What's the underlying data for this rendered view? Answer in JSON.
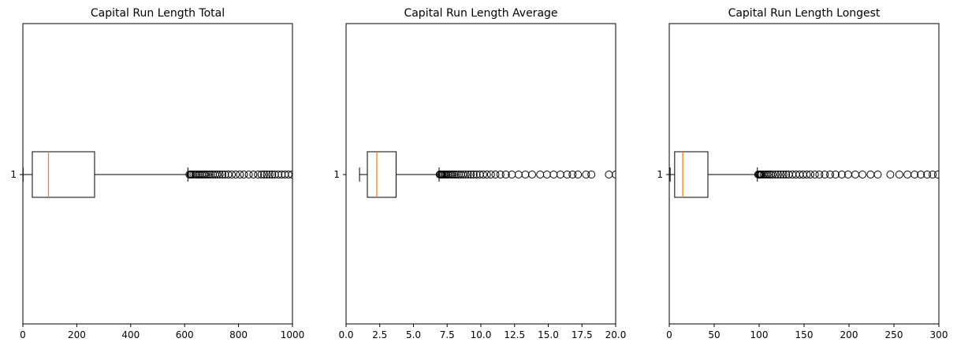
{
  "chart_data": [
    {
      "type": "boxplot",
      "orientation": "horizontal",
      "title": "Capital Run Length Total",
      "xlim": [
        0,
        1000
      ],
      "xticks": [
        0,
        200,
        400,
        600,
        800,
        1000
      ],
      "xtick_labels": [
        "0",
        "200",
        "400",
        "600",
        "800",
        "1000"
      ],
      "yticks": [
        "1"
      ],
      "box": {
        "whisker_low": 1,
        "q1": 35,
        "median": 95,
        "q3": 266,
        "whisker_high": 612
      },
      "outliers": [
        618,
        622,
        627,
        633,
        640,
        645,
        652,
        658,
        664,
        670,
        676,
        683,
        690,
        697,
        705,
        713,
        721,
        730,
        740,
        750,
        762,
        775,
        790,
        805,
        820,
        838,
        855,
        872,
        885,
        895,
        905,
        915,
        925,
        935,
        948,
        960,
        972,
        985,
        998
      ]
    },
    {
      "type": "boxplot",
      "orientation": "horizontal",
      "title": "Capital Run Length Average",
      "xlim": [
        0.0,
        20.0
      ],
      "xticks": [
        0.0,
        2.5,
        5.0,
        7.5,
        10.0,
        12.5,
        15.0,
        17.5,
        20.0
      ],
      "xtick_labels": [
        "0.0",
        "2.5",
        "5.0",
        "7.5",
        "10.0",
        "12.5",
        "15.0",
        "17.5",
        "20.0"
      ],
      "yticks": [
        "1"
      ],
      "box": {
        "whisker_low": 1.0,
        "q1": 1.58,
        "median": 2.28,
        "q3": 3.71,
        "whisker_high": 6.9
      },
      "outliers": [
        6.95,
        7.02,
        7.1,
        7.18,
        7.27,
        7.36,
        7.46,
        7.56,
        7.67,
        7.8,
        7.93,
        8.07,
        8.21,
        8.36,
        8.52,
        8.69,
        8.86,
        9.05,
        9.25,
        9.46,
        9.68,
        9.92,
        10.17,
        10.45,
        10.75,
        11.08,
        11.45,
        11.85,
        12.3,
        12.8,
        13.3,
        13.8,
        14.4,
        14.9,
        15.4,
        15.9,
        16.4,
        16.8,
        17.2,
        17.8,
        18.2,
        19.5,
        20.0
      ]
    },
    {
      "type": "boxplot",
      "orientation": "horizontal",
      "title": "Capital Run Length Longest",
      "xlim": [
        0,
        300
      ],
      "xticks": [
        0,
        50,
        100,
        150,
        200,
        250,
        300
      ],
      "xtick_labels": [
        "0",
        "50",
        "100",
        "150",
        "200",
        "250",
        "300"
      ],
      "yticks": [
        "1"
      ],
      "box": {
        "whisker_low": 1,
        "q1": 6,
        "median": 15,
        "q3": 43,
        "whisker_high": 98
      },
      "outliers": [
        99,
        100,
        101,
        102,
        103,
        105,
        107,
        109,
        111,
        113,
        115,
        118,
        121,
        124,
        127,
        130,
        133,
        137,
        141,
        145,
        149,
        153,
        157,
        162,
        167,
        173,
        179,
        185,
        192,
        199,
        207,
        215,
        224,
        232,
        246,
        256,
        265,
        273,
        280,
        287,
        293,
        299
      ]
    }
  ]
}
